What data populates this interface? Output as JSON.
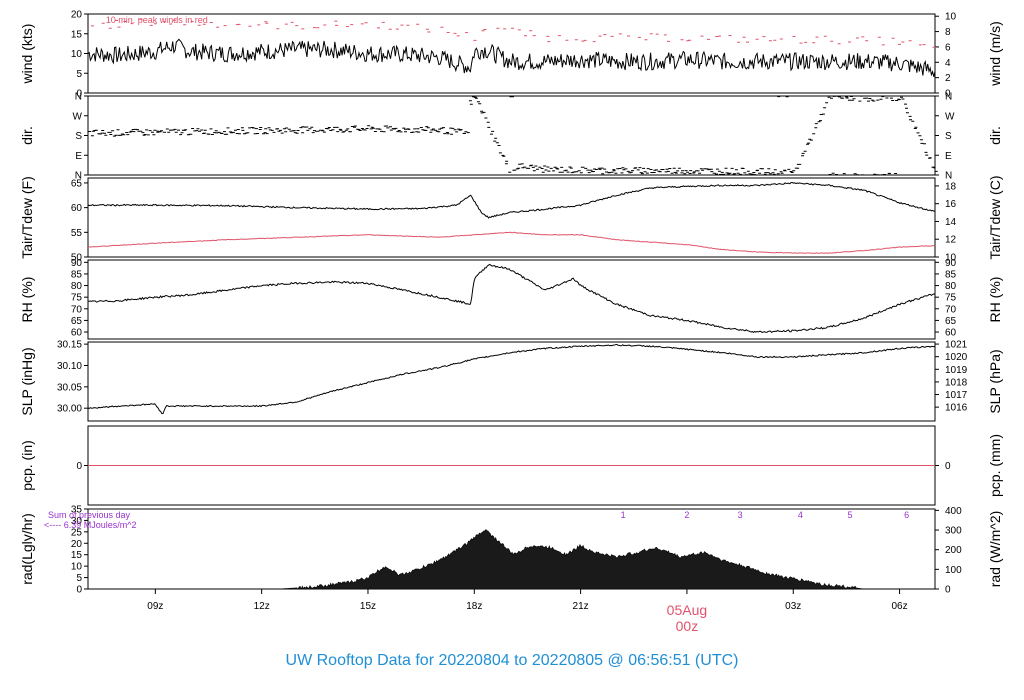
{
  "footer": {
    "title": "UW Rooftop Data for 20220804  to  20220805 @ 06:56:51  (UTC)"
  },
  "colors": {
    "line": "#000000",
    "red": "#df536b",
    "purple": "#9932cc",
    "footer": "#1f8fd6",
    "frame": "#000000"
  },
  "chart_data": {
    "type": "line",
    "x_axis": {
      "unit": "hours UTC since 20220804 06:00",
      "range": [
        1.1,
        25.0
      ],
      "ticks": [
        {
          "x": 3,
          "label": "09z"
        },
        {
          "x": 6,
          "label": "12z"
        },
        {
          "x": 9,
          "label": "15z"
        },
        {
          "x": 12,
          "label": "18z"
        },
        {
          "x": 15,
          "label": "21z"
        },
        {
          "x": 18,
          "label": "05Aug"
        },
        {
          "x": 21,
          "label": "03z"
        },
        {
          "x": 24,
          "label": "06z"
        }
      ],
      "date_marker": {
        "x": 18,
        "date": "05Aug",
        "time": "00z"
      }
    },
    "panels": [
      {
        "id": "wind",
        "ylabel_left": "wind (kts)",
        "ylabel_right": "wind (m/s)",
        "ylim": [
          0,
          20
        ],
        "yticks_left": [
          "0",
          "5",
          "10",
          "15",
          "20"
        ],
        "yticks_right": [
          "0",
          "2",
          "4",
          "6",
          "8",
          "10"
        ],
        "annotation": "10 min. peak winds in red",
        "series": [
          {
            "color": "black",
            "x": [
              1.1,
              2,
              3,
              3.5,
              4,
              5,
              6,
              7,
              8,
              9,
              10,
              11,
              11.9,
              12.0,
              12.3,
              13,
              14,
              15,
              16,
              17,
              18,
              19,
              20,
              21,
              22,
              23,
              24,
              25
            ],
            "y": [
              10,
              9.5,
              10.5,
              12,
              10.5,
              10,
              10.5,
              11,
              11,
              10,
              9.8,
              9,
              6.5,
              10.5,
              11,
              8,
              8,
              8.5,
              8,
              8,
              8.5,
              8,
              8,
              8,
              8,
              8,
              7.5,
              5.5
            ]
          },
          {
            "color": "red",
            "name": "10 min. peak winds",
            "x": [
              1.1,
              3,
              5,
              7,
              9,
              11,
              12.0,
              12.3,
              14,
              16,
              18,
              20,
              22,
              24,
              25
            ],
            "y": [
              17,
              18,
              17.5,
              17,
              17.5,
              16,
              14,
              17,
              14,
              14,
              14,
              13.5,
              13.5,
              13,
              11
            ]
          }
        ]
      },
      {
        "id": "dir",
        "ylabel_left": "dir.",
        "ylabel_right": "dir.",
        "ylim": [
          0,
          360
        ],
        "yticks_left": [
          "N",
          "E",
          "S",
          "W",
          "N"
        ],
        "yticks_right": [
          "N",
          "E",
          "S",
          "W",
          "N"
        ],
        "series": [
          {
            "color": "black",
            "style": "points",
            "x": [
              1.1,
              3,
              5,
              7,
              9,
              11,
              11.8,
              11.85,
              12.0,
              13,
              13.2,
              14,
              16,
              18,
              20,
              21,
              22,
              23,
              24,
              25
            ],
            "y": [
              190,
              195,
              200,
              205,
              210,
              205,
              190,
              330,
              355,
              5,
              40,
              25,
              20,
              20,
              15,
              10,
              355,
              350,
              355,
              10
            ]
          }
        ]
      },
      {
        "id": "temp",
        "ylabel_left": "Tair/Tdew (F)",
        "ylabel_right": "Tair/Tdew (C)",
        "ylim": [
          50,
          66
        ],
        "yticks_left": [
          "50",
          "55",
          "60",
          "65"
        ],
        "yticks_right": [
          "10",
          "12",
          "14",
          "16",
          "18"
        ],
        "series": [
          {
            "color": "black",
            "name": "Tair",
            "x": [
              1.1,
              3,
              5,
              7,
              9,
              10.5,
              11.5,
              11.9,
              12.2,
              12.4,
              13,
              14,
              15,
              16,
              17,
              18,
              19,
              20,
              21,
              22,
              23,
              24,
              25
            ],
            "y": [
              60.5,
              60.5,
              60.4,
              60,
              59.7,
              59.8,
              60.5,
              62.5,
              59,
              58,
              59,
              59.7,
              60.5,
              62.5,
              64,
              64.3,
              64.5,
              64.5,
              65,
              64.5,
              63.5,
              61,
              59.2
            ]
          },
          {
            "color": "red",
            "name": "Tdew",
            "x": [
              1.1,
              3,
              5,
              7,
              9,
              11,
              12,
              13,
              14,
              15,
              16,
              17,
              18,
              19,
              20,
              21,
              22,
              23,
              24,
              25
            ],
            "y": [
              52,
              52.8,
              53.5,
              54,
              54.5,
              54,
              54.5,
              55,
              54.5,
              54.5,
              53.5,
              53,
              52.5,
              51.5,
              51,
              50.8,
              50.8,
              51.3,
              52,
              52.3
            ]
          }
        ]
      },
      {
        "id": "rh",
        "ylabel_left": "RH (%)",
        "ylabel_right": "RH (%)",
        "ylim": [
          57,
          91
        ],
        "yticks_left": [
          "60",
          "65",
          "70",
          "75",
          "80",
          "85",
          "90"
        ],
        "yticks_right": [
          "60",
          "65",
          "70",
          "75",
          "80",
          "85",
          "90"
        ],
        "series": [
          {
            "color": "black",
            "x": [
              1.1,
              2,
              3,
              4,
              5,
              6,
              7,
              8,
              9,
              10,
              11,
              11.9,
              12.0,
              12.4,
              13,
              14,
              14.8,
              15,
              16,
              17,
              18,
              19,
              20,
              21,
              22,
              23,
              24,
              25
            ],
            "y": [
              73,
              73.5,
              75,
              76,
              78,
              80,
              81,
              81.5,
              81,
              78,
              75,
              72,
              83,
              89,
              87,
              78,
              83,
              80,
              72,
              67,
              65,
              62,
              60,
              60.5,
              62,
              66,
              72,
              76.5
            ]
          }
        ]
      },
      {
        "id": "slp",
        "ylabel_left": "SLP (inHg)",
        "ylabel_right": "SLP (hPa)",
        "ylim": [
          29.97,
          30.155
        ],
        "yticks_left": [
          "30.00",
          "30.05",
          "30.10",
          "30.15"
        ],
        "yticks_right": [
          "1016",
          "1017",
          "1018",
          "1019",
          "1020",
          "1021"
        ],
        "series": [
          {
            "color": "black",
            "x": [
              1.1,
              2,
              3,
              3.2,
              3.3,
              4,
              5,
              6,
              7,
              8,
              9,
              10,
              11,
              12,
              13,
              14,
              15,
              16,
              17,
              18,
              19,
              20,
              21,
              22,
              23,
              24,
              25
            ],
            "y": [
              30.0,
              30.005,
              30.01,
              29.985,
              30.005,
              30.005,
              30.005,
              30.005,
              30.015,
              30.04,
              30.06,
              30.08,
              30.095,
              30.115,
              30.13,
              30.14,
              30.145,
              30.148,
              30.145,
              30.138,
              30.13,
              30.12,
              30.12,
              30.125,
              30.13,
              30.14,
              30.145
            ]
          }
        ]
      },
      {
        "id": "pcp",
        "ylabel_left": "pcp. (in)",
        "ylabel_right": "pcp. (mm)",
        "ylim": [
          -1,
          1
        ],
        "yticks_left": [
          "0"
        ],
        "yticks_right": [
          "0"
        ],
        "series": [
          {
            "color": "red",
            "x": [
              1.1,
              25
            ],
            "y": [
              0,
              0
            ]
          }
        ]
      },
      {
        "id": "rad",
        "ylabel_left": "rad(Lgly/hr)",
        "ylabel_right": "rad (W/m^2)",
        "ylim": [
          0,
          35
        ],
        "yticks_left": [
          "0",
          "5",
          "10",
          "15",
          "20",
          "25",
          "30",
          "35"
        ],
        "yticks_right": [
          "0",
          "100",
          "200",
          "300",
          "400"
        ],
        "annotation_lines": [
          "Sum of previous day",
          "<---- 6.39 MJoules/m^2"
        ],
        "markers": [
          {
            "x": 16.2,
            "label": "1"
          },
          {
            "x": 18.0,
            "label": "2"
          },
          {
            "x": 19.5,
            "label": "3"
          },
          {
            "x": 21.2,
            "label": "4"
          },
          {
            "x": 22.6,
            "label": "5"
          },
          {
            "x": 24.2,
            "label": "6"
          }
        ],
        "series": [
          {
            "color": "black",
            "style": "area",
            "x": [
              6.5,
              7,
              7.5,
              8,
              8.5,
              9,
              9.5,
              9.7,
              9.9,
              10.3,
              10.8,
              11.3,
              11.8,
              12.3,
              12.9,
              13.1,
              13.6,
              14.2,
              14.6,
              15.0,
              15.4,
              16.0,
              16.6,
              17.1,
              17.5,
              17.8,
              18.5,
              19.1,
              19.6,
              20.2,
              20.8,
              21.4,
              21.8,
              22.5,
              23,
              24.2,
              25
            ],
            "y": [
              0,
              0.5,
              1,
              2,
              3,
              5,
              10,
              8,
              6,
              8,
              11,
              15,
              20,
              26,
              18,
              15,
              19,
              18,
              15,
              19,
              16,
              14,
              16,
              18,
              16,
              14,
              16,
              12,
              10,
              7,
              5,
              3.5,
              2,
              1,
              0,
              0,
              0
            ]
          }
        ]
      }
    ]
  }
}
